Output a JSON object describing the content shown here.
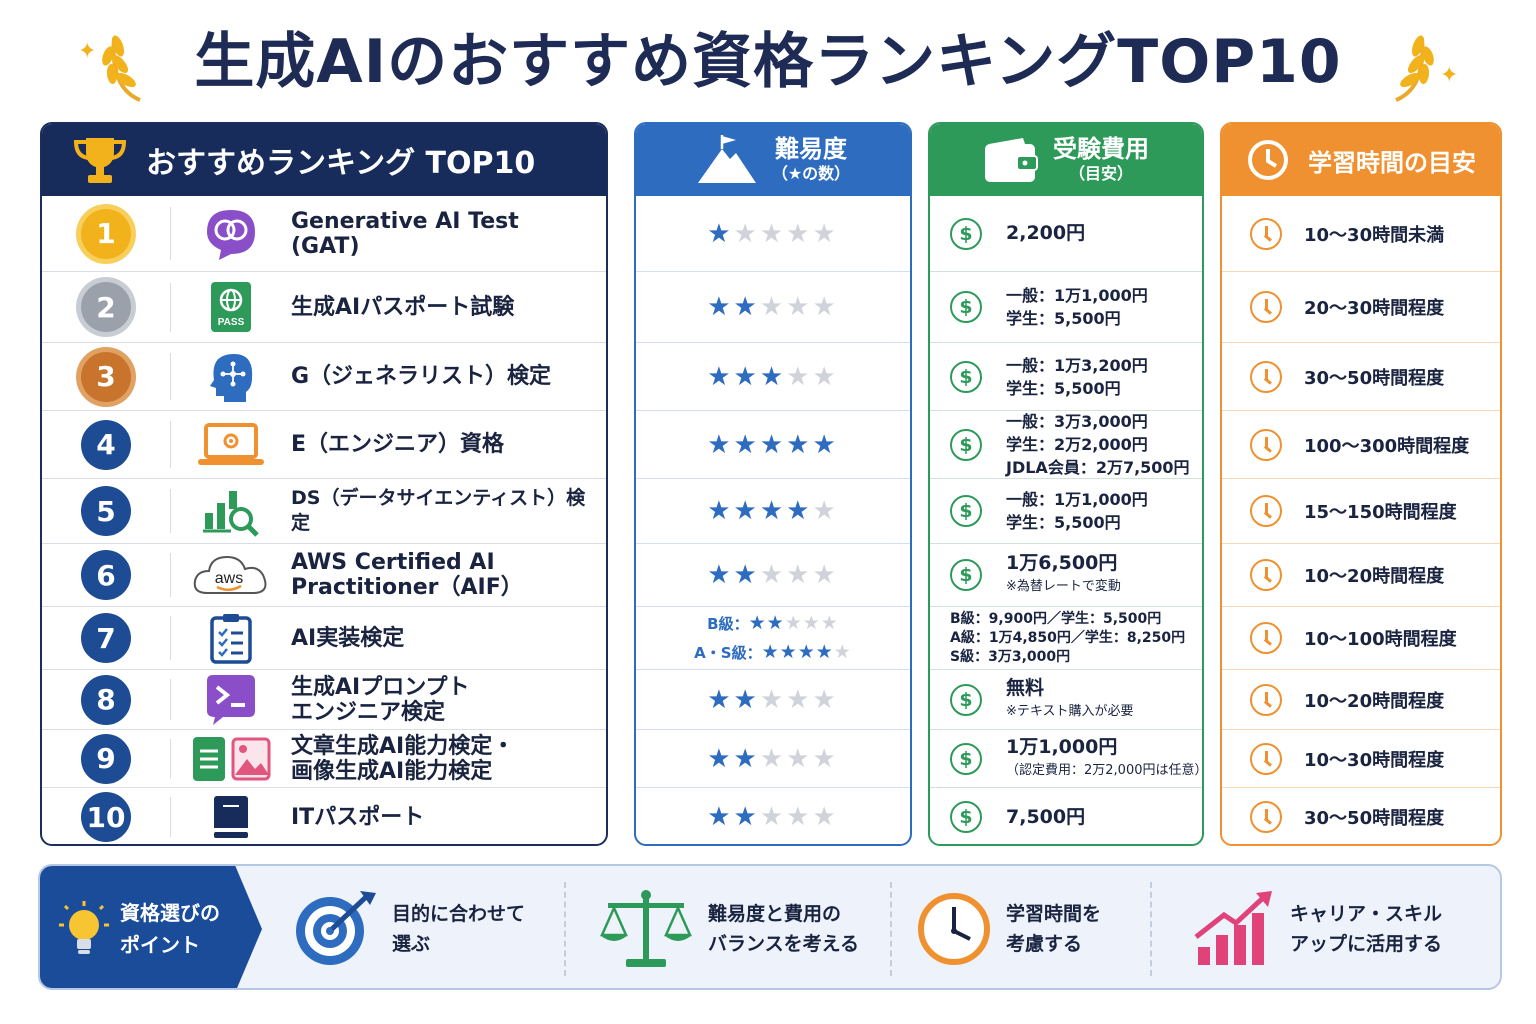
{
  "title": "生成AIのおすすめ資格ランキングTOP10",
  "headers": {
    "ranking": "おすすめランキング TOP10",
    "difficulty": "難易度",
    "difficulty_sub": "（★の数）",
    "fee": "受験費用",
    "fee_sub": "（目安）",
    "time": "学習時間の目安"
  },
  "colors": {
    "navy": "#182c5c",
    "blue": "#2e6cc0",
    "green": "#2d9a5a",
    "orange": "#ef9130"
  },
  "rows": [
    {
      "rank": "1",
      "name": "Generative AI Test (GAT)",
      "icon": "brain-chat-icon",
      "stars": 1,
      "fee": [
        "2,200円"
      ],
      "time": "10～30時間未満"
    },
    {
      "rank": "2",
      "name": "生成AIパスポート試験",
      "icon": "pass-globe-icon",
      "stars": 2,
      "fee": [
        "一般：1万1,000円",
        "学生：5,500円"
      ],
      "time": "20～30時間程度"
    },
    {
      "rank": "3",
      "name": "G（ジェネラリスト）検定",
      "icon": "head-network-icon",
      "stars": 3,
      "fee": [
        "一般：1万3,200円",
        "学生：5,500円"
      ],
      "time": "30～50時間程度"
    },
    {
      "rank": "4",
      "name": "E（エンジニア）資格",
      "icon": "laptop-gear-icon",
      "stars": 5,
      "fee": [
        "一般：3万3,000円",
        "学生：2万2,000円",
        "JDLA会員：2万7,500円"
      ],
      "time": "100～300時間程度"
    },
    {
      "rank": "5",
      "name": "DS（データサイエンティスト）検定",
      "icon": "chart-magnifier-icon",
      "stars": 4,
      "fee": [
        "一般：1万1,000円",
        "学生：5,500円"
      ],
      "time": "15～150時間程度"
    },
    {
      "rank": "6",
      "name": "AWS Certified AI Practitioner（AIF）",
      "icon": "aws-cloud-icon",
      "stars": 2,
      "fee": [
        "1万6,500円"
      ],
      "fee_note": "※為替レートで変動",
      "time": "10～20時間程度"
    },
    {
      "rank": "7",
      "name": "AI実装検定",
      "icon": "clipboard-checklist-icon",
      "stars": null,
      "stars_multi": [
        {
          "label": "B級：",
          "stars": 2
        },
        {
          "label": "A・S級：",
          "stars": 4
        }
      ],
      "fee_plain": [
        "B級：9,900円／学生：5,500円",
        "A級：1万4,850円／学生：8,250円",
        "S級：3万3,000円"
      ],
      "time": "10～100時間程度"
    },
    {
      "rank": "8",
      "name": "生成AIプロンプトエンジニア検定",
      "icon": "terminal-prompt-icon",
      "stars": 2,
      "fee": [
        "無料"
      ],
      "fee_note": "※テキスト購入が必要",
      "time": "10～20時間程度"
    },
    {
      "rank": "9",
      "name": "文章生成AI能力検定・画像生成AI能力検定",
      "icon": "document-image-icon",
      "stars": 2,
      "fee": [
        "1万1,000円"
      ],
      "fee_note": "（認定費用：2万2,000円は任意）",
      "time": "10～30時間程度"
    },
    {
      "rank": "10",
      "name": "ITパスポート",
      "icon": "book-icon",
      "stars": 2,
      "fee": [
        "7,500円"
      ],
      "time": "30～50時間程度"
    }
  ],
  "names_split": {
    "r1": [
      "Generative AI Test",
      "(GAT)"
    ],
    "r6": [
      "AWS Certified AI",
      "Practitioner（AIF）"
    ],
    "r8": [
      "生成AIプロンプト",
      "エンジニア検定"
    ],
    "r9": [
      "文章生成AI能力検定・",
      "画像生成AI能力検定"
    ]
  },
  "tips": {
    "lead": [
      "資格選びの",
      "ポイント"
    ],
    "items": [
      {
        "icon": "target-icon",
        "lines": [
          "目的に合わせて",
          "選ぶ"
        ]
      },
      {
        "icon": "scale-icon",
        "lines": [
          "難易度と費用の",
          "バランスを考える"
        ]
      },
      {
        "icon": "clock-icon",
        "lines": [
          "学習時間を",
          "考慮する"
        ]
      },
      {
        "icon": "growth-chart-icon",
        "lines": [
          "キャリア・スキル",
          "アップに活用する"
        ]
      }
    ]
  }
}
